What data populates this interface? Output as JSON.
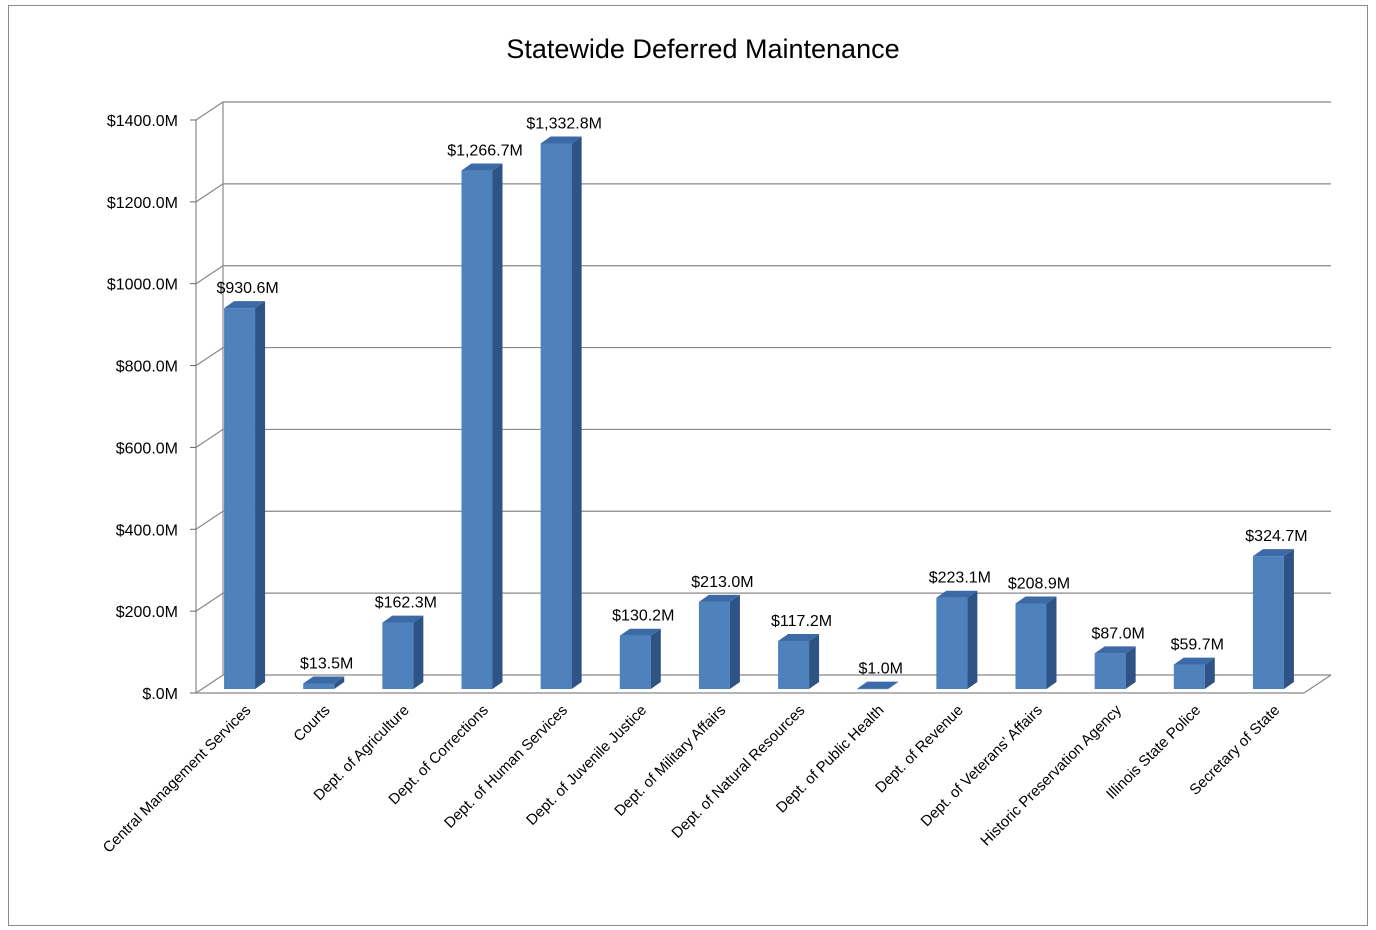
{
  "chart_data": {
    "type": "bar",
    "title": "Statewide Deferred Maintenance",
    "xlabel": "",
    "ylabel": "",
    "ylim": [
      0,
      1400
    ],
    "grid": true,
    "legend": "none",
    "bar_color": "#4F81BD",
    "bar_side_color": "#2E5486",
    "bar_top_color": "#3B6AA6",
    "y_ticks": [
      0,
      200,
      400,
      600,
      800,
      1000,
      1200,
      1400
    ],
    "y_tick_labels": [
      "$.0M",
      "$200.0M",
      "$400.0M",
      "$600.0M",
      "$800.0M",
      "$1000.0M",
      "$1200.0M",
      "$1400.0M"
    ],
    "categories": [
      "Central Management Services",
      "Courts",
      "Dept. of Agriculture",
      "Dept. of Corrections",
      "Dept. of Human Services",
      "Dept. of Juvenile Justice",
      "Dept. of Military Affairs",
      "Dept. of Natural Resources",
      "Dept. of Public Health",
      "Dept. of Revenue",
      "Dept. of Veterans' Affairs",
      "Historic Preservation Agency",
      "Illinois State Police",
      "Secretary of State"
    ],
    "values": [
      930.6,
      13.5,
      162.3,
      1266.7,
      1332.8,
      130.2,
      213.0,
      117.2,
      1.0,
      223.1,
      208.9,
      87.0,
      59.7,
      324.7
    ],
    "data_labels": [
      "$930.6M",
      "$13.5M",
      "$162.3M",
      "$1,266.7M",
      "$1,332.8M",
      "$130.2M",
      "$213.0M",
      "$117.2M",
      "$1.0M",
      "$223.1M",
      "$208.9M",
      "$87.0M",
      "$59.7M",
      "$324.7M"
    ]
  }
}
